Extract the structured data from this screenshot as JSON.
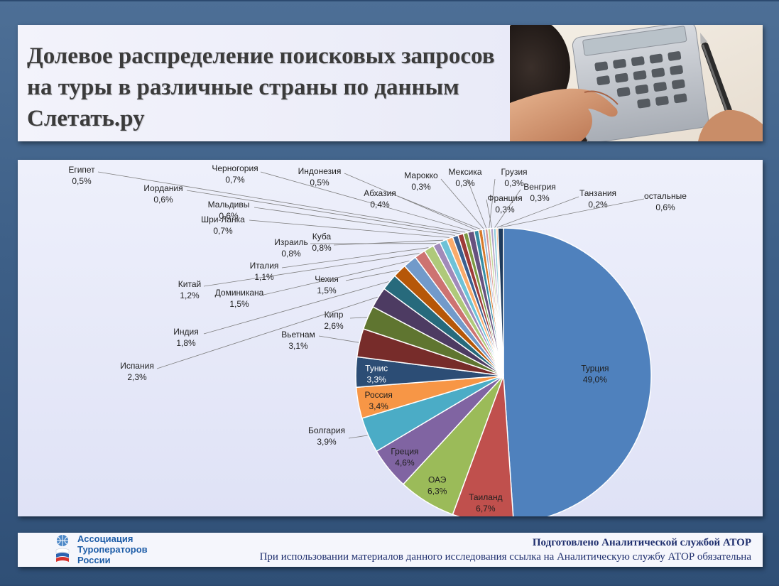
{
  "title": "Долевое распределение поисковых запросов на туры в различные страны по данным Слетать.ру",
  "footer": {
    "org_lines": [
      "Ассоциация",
      "Туроператоров",
      "России"
    ],
    "prepared": "Подготовлено Аналитической  службой АТОР",
    "usage": "При использовании  материалов данного исследования ссылка на Аналитическую  службу АТОР обязательна"
  },
  "colors": {
    "title_text": "#3b3b3b",
    "footer_text": "#1f2f6e",
    "logo_text": "#1f5ea8"
  },
  "chart_data": {
    "type": "pie",
    "slices": [
      {
        "label": "Турция",
        "value": 49.0,
        "value_label": "49,0%",
        "color": "#4f81bd",
        "label_inside": true,
        "label_light": false
      },
      {
        "label": "Таиланд",
        "value": 6.7,
        "value_label": "6,7%",
        "color": "#c0504d",
        "label_inside": true,
        "label_light": false
      },
      {
        "label": "ОАЭ",
        "value": 6.3,
        "value_label": "6,3%",
        "color": "#9bbb59",
        "label_inside": true,
        "label_light": false
      },
      {
        "label": "Греция",
        "value": 4.6,
        "value_label": "4,6%",
        "color": "#8064a2",
        "label_inside": true,
        "label_light": false
      },
      {
        "label": "Болгария",
        "value": 3.9,
        "value_label": "3,9%",
        "color": "#4bacc6",
        "label_inside": false
      },
      {
        "label": "Россия",
        "value": 3.4,
        "value_label": "3,4%",
        "color": "#f79646",
        "label_inside": true,
        "label_light": false
      },
      {
        "label": "Тунис",
        "value": 3.3,
        "value_label": "3,3%",
        "color": "#2c4d75",
        "label_inside": true,
        "label_light": true
      },
      {
        "label": "Вьетнам",
        "value": 3.1,
        "value_label": "3,1%",
        "color": "#772c2a",
        "label_inside": false
      },
      {
        "label": "Кипр",
        "value": 2.6,
        "value_label": "2,6%",
        "color": "#5f7530",
        "label_inside": false
      },
      {
        "label": "Испания",
        "value": 2.3,
        "value_label": "2,3%",
        "color": "#4d3b62",
        "label_inside": false
      },
      {
        "label": "Индия",
        "value": 1.8,
        "value_label": "1,8%",
        "color": "#276a7c",
        "label_inside": false
      },
      {
        "label": "Чехия",
        "value": 1.5,
        "value_label": "1,5%",
        "color": "#b65708",
        "label_inside": false
      },
      {
        "label": "Доминикана",
        "value": 1.5,
        "value_label": "1,5%",
        "color": "#729aca",
        "label_inside": false
      },
      {
        "label": "Китай",
        "value": 1.2,
        "value_label": "1,2%",
        "color": "#cd7371",
        "label_inside": false
      },
      {
        "label": "Италия",
        "value": 1.1,
        "value_label": "1,1%",
        "color": "#afc97a",
        "label_inside": false
      },
      {
        "label": "Израиль",
        "value": 0.8,
        "value_label": "0,8%",
        "color": "#a18ab9",
        "label_inside": false
      },
      {
        "label": "Куба",
        "value": 0.8,
        "value_label": "0,8%",
        "color": "#6ec2d7",
        "label_inside": false
      },
      {
        "label": "Шри-Ланка",
        "value": 0.7,
        "value_label": "0,7%",
        "color": "#f9ab6b",
        "label_inside": false
      },
      {
        "label": "Мальдивы",
        "value": 0.6,
        "value_label": "0,6%",
        "color": "#3a5f8f",
        "label_inside": false
      },
      {
        "label": "Иордания",
        "value": 0.6,
        "value_label": "0,6%",
        "color": "#9e3b38",
        "label_inside": false
      },
      {
        "label": "Египет",
        "value": 0.5,
        "value_label": "0,5%",
        "color": "#7d9a44",
        "label_inside": false
      },
      {
        "label": "Черногория",
        "value": 0.7,
        "value_label": "0,7%",
        "color": "#67527f",
        "label_inside": false
      },
      {
        "label": "Индонезия",
        "value": 0.5,
        "value_label": "0,5%",
        "color": "#368da4",
        "label_inside": false
      },
      {
        "label": "Абхазия",
        "value": 0.4,
        "value_label": "0,4%",
        "color": "#d6792b",
        "label_inside": false
      },
      {
        "label": "Марокко",
        "value": 0.3,
        "value_label": "0,3%",
        "color": "#95b3d7",
        "label_inside": false
      },
      {
        "label": "Мексика",
        "value": 0.3,
        "value_label": "0,3%",
        "color": "#d99694",
        "label_inside": false
      },
      {
        "label": "Грузия",
        "value": 0.3,
        "value_label": "0,3%",
        "color": "#c3d69b",
        "label_inside": false
      },
      {
        "label": "Франция",
        "value": 0.3,
        "value_label": "0,3%",
        "color": "#b2a2c7",
        "label_inside": false
      },
      {
        "label": "Венгрия",
        "value": 0.3,
        "value_label": "0,3%",
        "color": "#93cddd",
        "label_inside": false
      },
      {
        "label": "Танзания",
        "value": 0.2,
        "value_label": "0,2%",
        "color": "#fac08f",
        "label_inside": false
      },
      {
        "label": "остальные",
        "value": 0.6,
        "value_label": "0,6%",
        "color": "#1f3b5c",
        "label_inside": false
      }
    ]
  }
}
